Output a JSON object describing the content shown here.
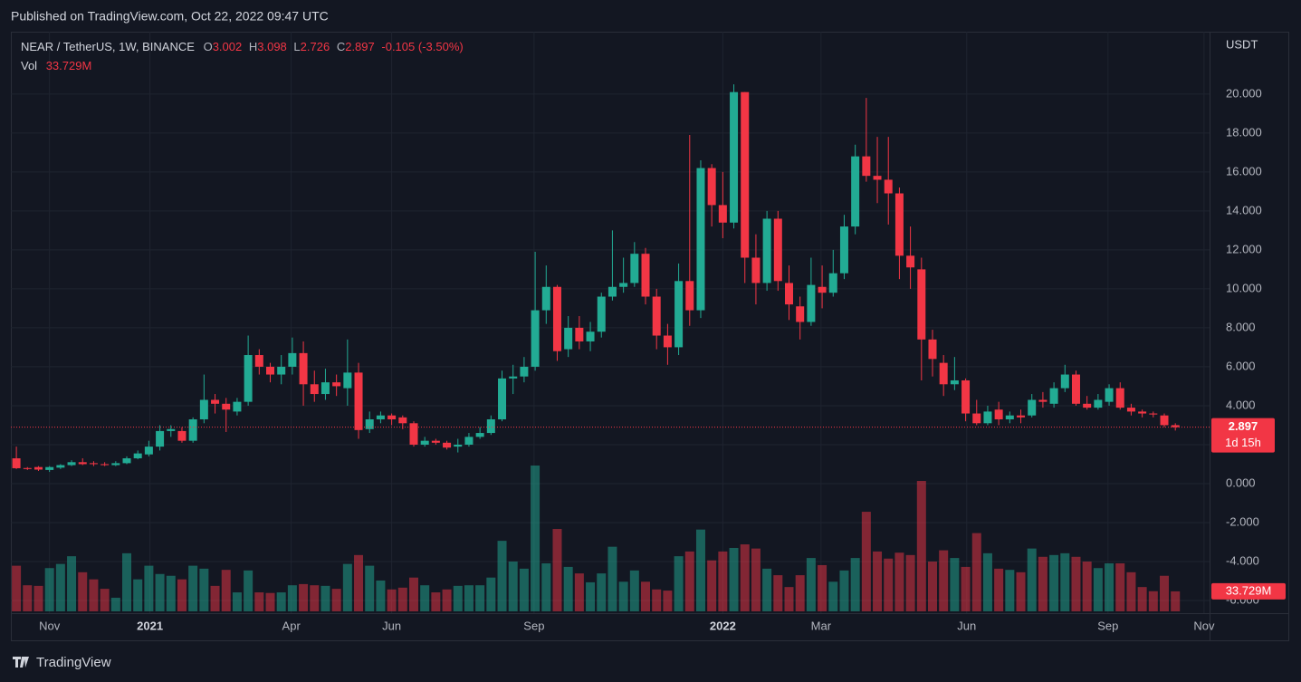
{
  "header": {
    "published": "Published on TradingView.com, Oct 22, 2022 09:47 UTC"
  },
  "footer": {
    "brand": "TradingView"
  },
  "chart_data": {
    "type": "candlestick",
    "title": "NEAR / TetherUS, 1W, BINANCE",
    "legend_labels": [
      "O",
      "H",
      "L",
      "C"
    ],
    "change_label": "-0.105 (-3.50%)",
    "y_axis_label": "USDT",
    "countdown": "1d 15h",
    "up_color": "#22ab94",
    "down_color": "#f23645",
    "grid": true,
    "open": [
      1.3,
      0.8,
      0.85,
      0.7,
      0.82,
      0.95,
      1.1,
      1.05,
      1.0,
      0.95,
      1.05,
      1.3,
      1.5,
      1.9,
      2.7,
      2.7,
      2.2,
      3.3,
      4.3,
      4.1,
      3.7,
      4.2,
      6.6,
      6.0,
      5.6,
      6.0,
      6.7,
      5.1,
      4.6,
      5.2,
      4.9,
      5.7,
      2.8,
      3.3,
      3.5,
      3.4,
      3.1,
      2.0,
      2.2,
      2.1,
      1.9,
      2.0,
      2.4,
      2.6,
      3.3,
      5.4,
      5.5,
      6.0,
      8.9,
      10.1,
      6.9,
      8.0,
      7.3,
      7.8,
      9.6,
      10.1,
      10.3,
      11.8,
      9.6,
      7.6,
      7.0,
      10.4,
      8.9,
      16.2,
      14.3,
      13.4,
      20.1,
      11.6,
      10.3,
      13.6,
      10.3,
      9.1,
      8.3,
      10.1,
      9.8,
      10.8,
      13.2,
      16.8,
      15.8,
      15.6,
      14.9,
      11.7,
      11.0,
      7.4,
      6.2,
      5.1,
      5.3,
      3.6,
      3.1,
      3.8,
      3.3,
      3.5,
      3.5,
      4.3,
      4.1,
      4.9,
      5.6,
      4.1,
      3.9,
      4.2,
      4.9,
      3.9,
      3.7,
      3.6,
      3.5,
      3.002
    ],
    "high": [
      1.9,
      0.85,
      0.9,
      0.9,
      1.0,
      1.2,
      1.3,
      1.15,
      1.1,
      1.15,
      1.4,
      1.7,
      2.2,
      3.0,
      3.0,
      2.9,
      3.4,
      5.6,
      4.6,
      4.4,
      4.4,
      7.6,
      6.9,
      6.2,
      6.6,
      7.5,
      7.3,
      5.8,
      5.9,
      5.6,
      7.4,
      6.2,
      3.7,
      3.7,
      3.6,
      3.5,
      3.2,
      2.4,
      2.3,
      2.2,
      2.3,
      2.6,
      2.9,
      3.5,
      5.8,
      6.1,
      6.5,
      11.9,
      11.2,
      10.2,
      8.6,
      8.6,
      8.3,
      9.8,
      13.0,
      11.6,
      12.4,
      12.1,
      10.0,
      8.2,
      11.3,
      17.9,
      16.6,
      16.4,
      16.0,
      20.5,
      20.1,
      12.8,
      14.0,
      14.0,
      11.2,
      9.6,
      11.6,
      11.2,
      12.0,
      13.8,
      17.4,
      19.8,
      17.8,
      17.8,
      15.2,
      13.2,
      11.6,
      7.9,
      6.6,
      6.5,
      5.4,
      4.3,
      4.0,
      4.2,
      3.7,
      3.8,
      4.6,
      4.7,
      5.2,
      6.1,
      5.8,
      4.5,
      4.6,
      5.1,
      5.2,
      4.1,
      3.8,
      3.7,
      3.6,
      3.098
    ],
    "low": [
      0.75,
      0.7,
      0.65,
      0.6,
      0.75,
      0.9,
      0.95,
      0.9,
      0.9,
      0.9,
      1.0,
      1.25,
      1.4,
      1.7,
      2.4,
      2.1,
      2.1,
      3.1,
      3.6,
      2.65,
      3.5,
      4.0,
      5.6,
      5.2,
      5.1,
      5.6,
      4.0,
      4.2,
      4.3,
      4.5,
      4.0,
      2.3,
      2.6,
      3.1,
      3.0,
      2.8,
      1.9,
      1.9,
      2.0,
      1.75,
      1.6,
      1.9,
      2.3,
      2.5,
      3.2,
      4.6,
      5.2,
      5.8,
      8.2,
      6.3,
      6.5,
      6.9,
      6.8,
      7.5,
      9.4,
      9.8,
      10.1,
      9.2,
      6.9,
      6.1,
      6.6,
      8.1,
      8.5,
      13.2,
      12.6,
      13.1,
      10.3,
      9.2,
      9.9,
      9.9,
      8.4,
      7.4,
      8.1,
      9.0,
      9.6,
      10.5,
      12.8,
      15.5,
      14.4,
      13.3,
      10.5,
      10.0,
      5.3,
      5.5,
      4.5,
      4.8,
      3.2,
      3.0,
      3.0,
      3.0,
      3.1,
      3.1,
      3.4,
      3.9,
      3.9,
      4.7,
      4.0,
      3.8,
      3.8,
      4.0,
      3.8,
      3.5,
      3.4,
      3.4,
      2.9,
      2.726
    ],
    "close": [
      0.79,
      0.75,
      0.72,
      0.85,
      0.95,
      1.1,
      1.0,
      1.0,
      0.95,
      1.05,
      1.3,
      1.55,
      1.9,
      2.7,
      2.8,
      2.2,
      3.3,
      4.3,
      4.1,
      3.8,
      4.2,
      6.6,
      6.0,
      5.6,
      6.0,
      6.7,
      5.1,
      4.6,
      5.2,
      5.0,
      5.7,
      2.75,
      3.3,
      3.5,
      3.3,
      3.1,
      2.0,
      2.2,
      2.1,
      1.85,
      2.0,
      2.4,
      2.6,
      3.3,
      5.4,
      5.5,
      6.0,
      8.9,
      10.1,
      6.8,
      8.0,
      7.3,
      7.8,
      9.6,
      10.1,
      10.3,
      11.8,
      9.6,
      7.6,
      7.0,
      10.4,
      8.9,
      16.2,
      14.3,
      13.4,
      20.1,
      11.6,
      10.3,
      13.6,
      10.4,
      9.2,
      8.3,
      10.2,
      9.8,
      10.8,
      13.2,
      16.8,
      15.8,
      15.6,
      14.9,
      11.7,
      11.1,
      7.4,
      6.4,
      5.1,
      5.3,
      3.6,
      3.1,
      3.7,
      3.3,
      3.5,
      3.4,
      4.3,
      4.2,
      4.9,
      5.6,
      4.1,
      3.9,
      4.3,
      4.9,
      3.9,
      3.7,
      3.6,
      3.55,
      3.0,
      2.897
    ],
    "volume": {
      "name": "Vol",
      "values": [
        77,
        44,
        43,
        73,
        80,
        93,
        66,
        54,
        38,
        23,
        98,
        54,
        77,
        63,
        60,
        54,
        77,
        72,
        43,
        70,
        32,
        69,
        32,
        31,
        32,
        44,
        46,
        44,
        43,
        38,
        80,
        95,
        77,
        52,
        37,
        40,
        57,
        44,
        32,
        37,
        43,
        44,
        44,
        57,
        119,
        84,
        72,
        246,
        81,
        139,
        75,
        64,
        49,
        64,
        109,
        50,
        69,
        50,
        37,
        35,
        93,
        101,
        138,
        86,
        101,
        107,
        113,
        106,
        72,
        61,
        41,
        61,
        90,
        78,
        50,
        69,
        90,
        168,
        101,
        89,
        99,
        95,
        220,
        84,
        103,
        90,
        75,
        132,
        98,
        72,
        70,
        66,
        106,
        92,
        95,
        98,
        92,
        84,
        73,
        81,
        81,
        66,
        41,
        34,
        60,
        33.729
      ],
      "value_labels": [
        null,
        null,
        null,
        null,
        null,
        null,
        null,
        null,
        null,
        null,
        null,
        null,
        null,
        null,
        null,
        null,
        null,
        null,
        null,
        null,
        null,
        null,
        null,
        null,
        null,
        null,
        null,
        null,
        null,
        null,
        null,
        null,
        null,
        null,
        null,
        null,
        null,
        null,
        null,
        null,
        null,
        null,
        null,
        null,
        null,
        null,
        null,
        null,
        null,
        null,
        null,
        null,
        null,
        null,
        null,
        null,
        null,
        null,
        null,
        null,
        null,
        null,
        null,
        null,
        null,
        null,
        null,
        null,
        null,
        null,
        null,
        null,
        null,
        null,
        null,
        null,
        null,
        null,
        null,
        null,
        null,
        null,
        null,
        null,
        null,
        null,
        null,
        null,
        null,
        null,
        null,
        null,
        null,
        null,
        null,
        null,
        null,
        null,
        null,
        null,
        null,
        null,
        null,
        null,
        null,
        "33.729M"
      ]
    },
    "xlim": [
      -0.5,
      108.1
    ],
    "xticks": [
      {
        "value": 3.0,
        "label": "Nov"
      },
      {
        "value": 12.1,
        "label": "2021"
      },
      {
        "value": 24.9,
        "label": "Apr"
      },
      {
        "value": 34.0,
        "label": "Jun"
      },
      {
        "value": 46.9,
        "label": "Sep"
      },
      {
        "value": 64.0,
        "label": "2022"
      },
      {
        "value": 72.9,
        "label": "Mar"
      },
      {
        "value": 86.1,
        "label": "Jun"
      },
      {
        "value": 98.9,
        "label": "Sep"
      },
      {
        "value": 107.6,
        "label": "Nov"
      }
    ],
    "ylim": [
      -6.65,
      23.2
    ],
    "yticks": [
      {
        "value": 20,
        "label": "20.000"
      },
      {
        "value": 18,
        "label": "18.000"
      },
      {
        "value": 16,
        "label": "16.000"
      },
      {
        "value": 14,
        "label": "14.000"
      },
      {
        "value": 12,
        "label": "12.000"
      },
      {
        "value": 10,
        "label": "10.000"
      },
      {
        "value": 8,
        "label": "8.000"
      },
      {
        "value": 6,
        "label": "6.000"
      },
      {
        "value": 4,
        "label": "4.000"
      },
      {
        "value": 2,
        "label": "2.000"
      },
      {
        "value": 0,
        "label": "0.000"
      },
      {
        "value": -2,
        "label": "-2.000"
      },
      {
        "value": -4,
        "label": "-4.000"
      },
      {
        "value": -6,
        "label": "-6.000"
      }
    ]
  }
}
